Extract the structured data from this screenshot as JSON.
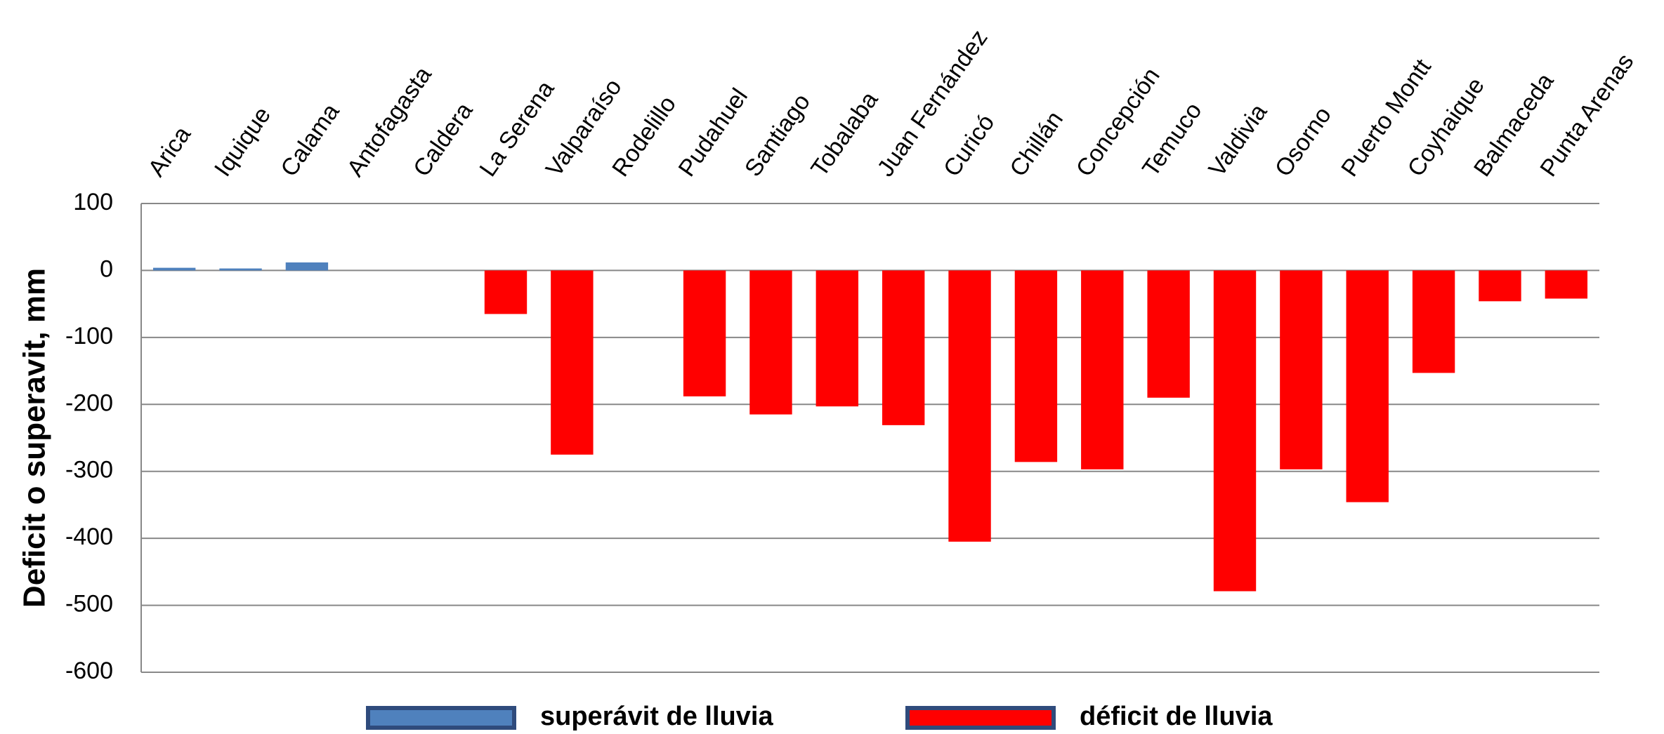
{
  "chart_data": {
    "type": "bar",
    "y_label": "Deficit o superavit, mm",
    "categories": [
      "Arica",
      "Iquique",
      "Calama",
      "Antofagasta",
      "Caldera",
      "La Serena",
      "Valparaíso",
      "Rodelillo",
      "Pudahuel",
      "Santiago",
      "Tobalaba",
      "Juan Fernández",
      "Curicó",
      "Chillán",
      "Concepción",
      "Temuco",
      "Valdivia",
      "Osorno",
      "Puerto Montt",
      "Coyhaique",
      "Balmaceda",
      "Punta Arenas"
    ],
    "series": [
      {
        "name": "superávit de lluvia",
        "color": "#4f81bd",
        "values": [
          4,
          3,
          12,
          null,
          null,
          null,
          null,
          null,
          null,
          null,
          null,
          null,
          null,
          null,
          null,
          null,
          null,
          null,
          null,
          null,
          null,
          null
        ]
      },
      {
        "name": "déficit de lluvia",
        "color": "#ff0000",
        "values": [
          null,
          null,
          null,
          null,
          null,
          -65,
          -275,
          null,
          -188,
          -215,
          -203,
          -231,
          -405,
          -286,
          -297,
          -190,
          -479,
          -297,
          -346,
          -153,
          -46,
          -42
        ]
      }
    ],
    "ylim": [
      -600,
      100
    ],
    "yticks": [
      -600,
      -500,
      -400,
      -300,
      -200,
      -100,
      0,
      100
    ],
    "grid": true
  }
}
